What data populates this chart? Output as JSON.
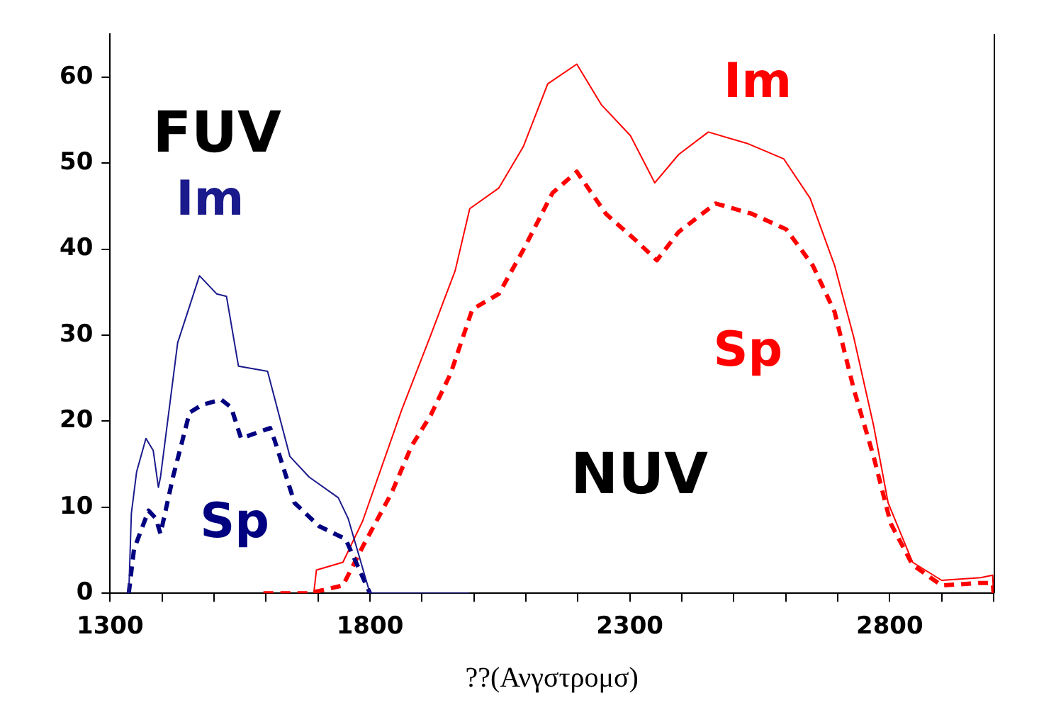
{
  "chart_data": {
    "type": "line",
    "xlabel": "??(Ανγστρομσ)",
    "xlim": [
      1300,
      3000
    ],
    "xticks": [
      1300,
      {
        "value": 1400,
        "label": null
      },
      {
        "value": 1500,
        "label": null
      },
      {
        "value": 1600,
        "label": null
      },
      {
        "value": 1700,
        "label": null
      },
      1800,
      {
        "value": 1900,
        "label": null
      },
      {
        "value": 2000,
        "label": null
      },
      {
        "value": 2100,
        "label": null
      },
      {
        "value": 2200,
        "label": null
      },
      2300,
      {
        "value": 2400,
        "label": null
      },
      {
        "value": 2500,
        "label": null
      },
      {
        "value": 2600,
        "label": null
      },
      {
        "value": 2700,
        "label": null
      },
      2800,
      {
        "value": 2900,
        "label": null
      },
      {
        "value": 3000,
        "label": null
      }
    ],
    "ylim": [
      0,
      65
    ],
    "yticks": [
      0,
      10,
      20,
      30,
      40,
      50,
      60
    ],
    "grid": false,
    "legend": false,
    "marker": "none",
    "series": [
      {
        "name": "Im",
        "color": "#1a1a8c",
        "line_style": "solid",
        "x": [
          1336,
          1341,
          1351,
          1369,
          1383,
          1393,
          1397,
          1430,
          1472,
          1505,
          1524,
          1547,
          1603,
          1646,
          1683,
          1739,
          1758,
          1800,
          1991
        ],
        "values": [
          0,
          9.3,
          14.1,
          18.0,
          16.6,
          12.3,
          13.5,
          29.1,
          36.9,
          34.8,
          34.5,
          26.4,
          25.8,
          15.9,
          13.5,
          11.1,
          8.7,
          0,
          0
        ]
      },
      {
        "name": "Sp",
        "color": "#000080",
        "line_style": "dashed",
        "x": [
          1336,
          1346,
          1374,
          1388,
          1397,
          1421,
          1453,
          1477,
          1514,
          1533,
          1552,
          1608,
          1617,
          1655,
          1702,
          1753,
          1800
        ],
        "values": [
          0,
          5.1,
          9.6,
          8.7,
          6.9,
          13.5,
          21.0,
          21.9,
          22.5,
          21.6,
          18.0,
          19.2,
          17.7,
          10.5,
          7.8,
          6.3,
          0
        ]
      },
      {
        "name": "Im",
        "color": "#ff0000",
        "line_style": "solid",
        "x": [
          1692,
          1697,
          1748,
          1786,
          1861,
          1917,
          1964,
          1992,
          2048,
          2095,
          2142,
          2198,
          2245,
          2301,
          2348,
          2394,
          2451,
          2525,
          2596,
          2647,
          2694,
          2731,
          2769,
          2797,
          2844,
          2900,
          2975,
          2998,
          3000
        ],
        "values": [
          0,
          2.7,
          3.6,
          8.4,
          21.3,
          30.0,
          37.5,
          44.7,
          47.1,
          51.9,
          59.2,
          61.5,
          56.8,
          53.2,
          47.7,
          51.0,
          53.6,
          52.3,
          50.5,
          45.9,
          38.1,
          29.7,
          19.5,
          10.5,
          3.6,
          1.5,
          1.8,
          2.1,
          0
        ]
      },
      {
        "name": "Sp",
        "color": "#ff0000",
        "line_style": "dashed",
        "x": [
          1595,
          1683,
          1748,
          1786,
          1842,
          1880,
          1917,
          1955,
          1997,
          2048,
          2095,
          2151,
          2198,
          2254,
          2310,
          2352,
          2394,
          2465,
          2535,
          2601,
          2652,
          2694,
          2731,
          2769,
          2802,
          2844,
          2900,
          2975,
          2998,
          3000
        ],
        "values": [
          0,
          0,
          0.9,
          5.4,
          11.7,
          17.1,
          20.7,
          25.5,
          33.0,
          34.8,
          39.9,
          46.5,
          49.0,
          44.1,
          41.1,
          38.7,
          42.0,
          45.3,
          44.1,
          42.3,
          38.1,
          32.7,
          23.7,
          15.9,
          8.1,
          3.3,
          0.9,
          1.2,
          1.2,
          0
        ]
      }
    ],
    "annotations": [
      "FUV",
      "NUV"
    ]
  }
}
